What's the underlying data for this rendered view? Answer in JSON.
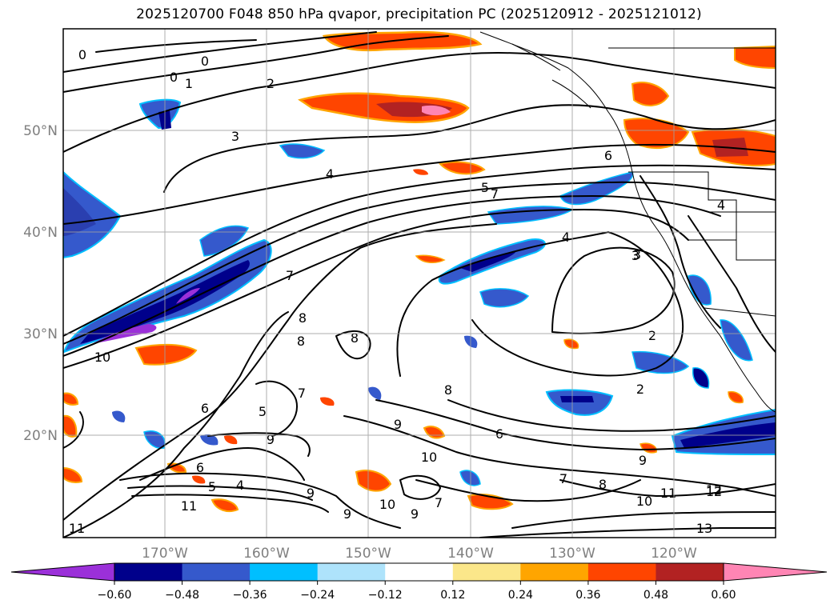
{
  "title": "2025120700 F048 850 hPa qvapor, precipitation PC (2025120912 - 2025121012)",
  "map": {
    "lon_range": [
      -180,
      -110
    ],
    "lat_range": [
      10,
      60
    ],
    "lat_labels": [
      "50°N",
      "40°N",
      "30°N",
      "20°N"
    ],
    "lon_labels": [
      "170°W",
      "160°W",
      "150°W",
      "140°W",
      "130°W",
      "120°W"
    ],
    "gridlines": true,
    "contour_labels": [
      "0",
      "0",
      "0",
      "1",
      "2",
      "3",
      "4",
      "5",
      "7",
      "6",
      "4",
      "3",
      "7",
      "8",
      "8",
      "8",
      "10",
      "2",
      "2",
      "6",
      "5",
      "9",
      "7",
      "8",
      "9",
      "6",
      "6",
      "5",
      "4",
      "11",
      "9",
      "10",
      "7",
      "7",
      "10",
      "9",
      "9",
      "9",
      "8",
      "12",
      "10",
      "11",
      "12",
      "13",
      "11",
      "4",
      "3"
    ]
  },
  "colorbar": {
    "ticks": [
      "−0.60",
      "−0.48",
      "−0.36",
      "−0.24",
      "−0.12",
      "0.12",
      "0.24",
      "0.36",
      "0.48",
      "0.60"
    ],
    "colors": [
      "#9b30d9",
      "#00008b",
      "#3559cc",
      "#00bfff",
      "#aee3fb",
      "#ffffff",
      "#fbe78a",
      "#ffa500",
      "#ff4500",
      "#b22222",
      "#ff85b4"
    ]
  }
}
